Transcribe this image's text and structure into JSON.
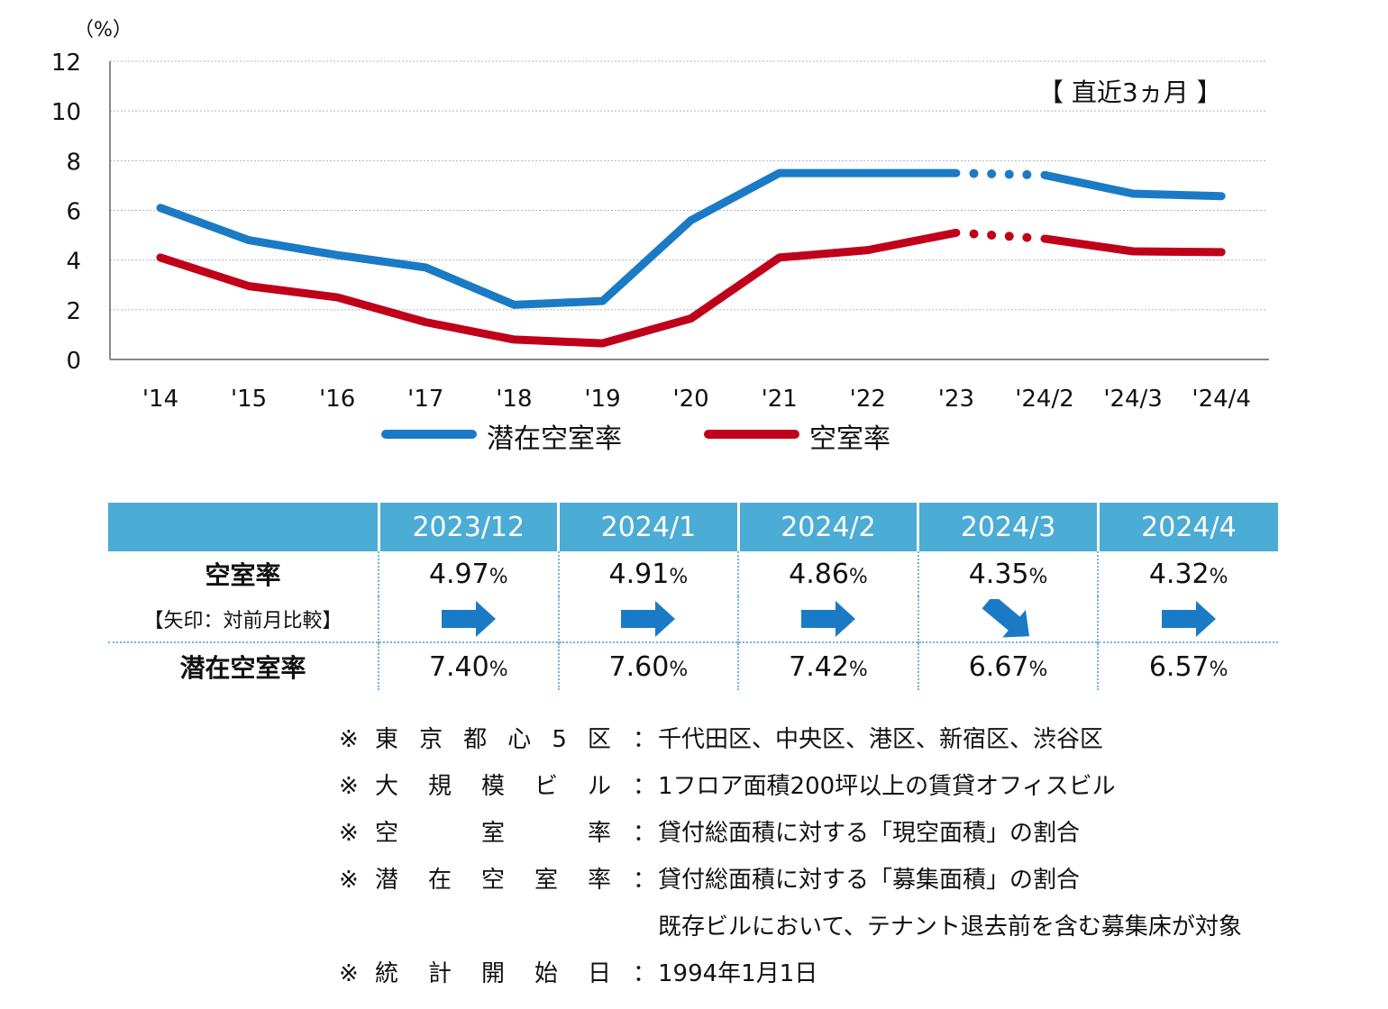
{
  "chart_data": {
    "type": "line",
    "unit_label": "（%）",
    "annotation": "【 直近3ヵ月 】",
    "ylim": [
      0,
      12
    ],
    "yticks": [
      0,
      2,
      4,
      6,
      8,
      10,
      12
    ],
    "categories": [
      "'14",
      "'15",
      "'16",
      "'17",
      "'18",
      "'19",
      "'20",
      "'21",
      "'22",
      "'23",
      "'24/2",
      "'24/3",
      "'24/4"
    ],
    "gap_between": [
      "'23",
      "'24/2"
    ],
    "series": [
      {
        "name": "潜在空室率",
        "color": "#1b7ac5",
        "values": [
          6.1,
          4.8,
          4.2,
          3.7,
          2.2,
          2.35,
          5.6,
          7.5,
          7.5,
          7.5,
          7.42,
          6.67,
          6.57
        ]
      },
      {
        "name": "空室率",
        "color": "#c0001a",
        "values": [
          4.1,
          2.95,
          2.5,
          1.5,
          0.8,
          0.65,
          1.65,
          4.1,
          4.4,
          5.1,
          4.86,
          4.35,
          4.32
        ]
      }
    ],
    "legend_position": "bottom"
  },
  "table": {
    "columns": [
      "2023/12",
      "2024/1",
      "2024/2",
      "2024/3",
      "2024/4"
    ],
    "vacancy_label": "空室率",
    "arrow_label": "【矢印：対前月比較】",
    "latent_label": "潜在空室率",
    "pct_sign": "%",
    "vacancy_values": [
      "4.97",
      "4.91",
      "4.86",
      "4.35",
      "4.32"
    ],
    "arrows": [
      "right-arrow",
      "right-arrow",
      "right-arrow",
      "down-right-arrow",
      "right-arrow"
    ],
    "latent_values": [
      "7.40",
      "7.60",
      "7.42",
      "6.67",
      "6.57"
    ],
    "arrow_color": "#1b7ac5"
  },
  "notes": [
    {
      "mark": "※",
      "key": [
        "東",
        "京",
        "都",
        "心",
        "5",
        "区"
      ],
      "colon": "：",
      "text": "千代田区、中央区、港区、新宿区、渋谷区"
    },
    {
      "mark": "※",
      "key": [
        "大",
        "規",
        "模",
        "ビ",
        "ル"
      ],
      "colon": "：",
      "text": "1フロア面積200坪以上の賃貸オフィスビル"
    },
    {
      "mark": "※",
      "key": [
        "空",
        "室",
        "率"
      ],
      "colon": "：",
      "text": "貸付総面積に対する「現空面積」の割合"
    },
    {
      "mark": "※",
      "key": [
        "潜",
        "在",
        "空",
        "室",
        "率"
      ],
      "colon": "：",
      "text": "貸付総面積に対する「募集面積」の割合"
    },
    {
      "mark": "",
      "key": [],
      "colon": "",
      "text": "既存ビルにおいて、テナント退去前を含む募集床が対象"
    },
    {
      "mark": "※",
      "key": [
        "統",
        "計",
        "開",
        "始",
        "日"
      ],
      "colon": "：",
      "text": "1994年1月1日"
    }
  ]
}
